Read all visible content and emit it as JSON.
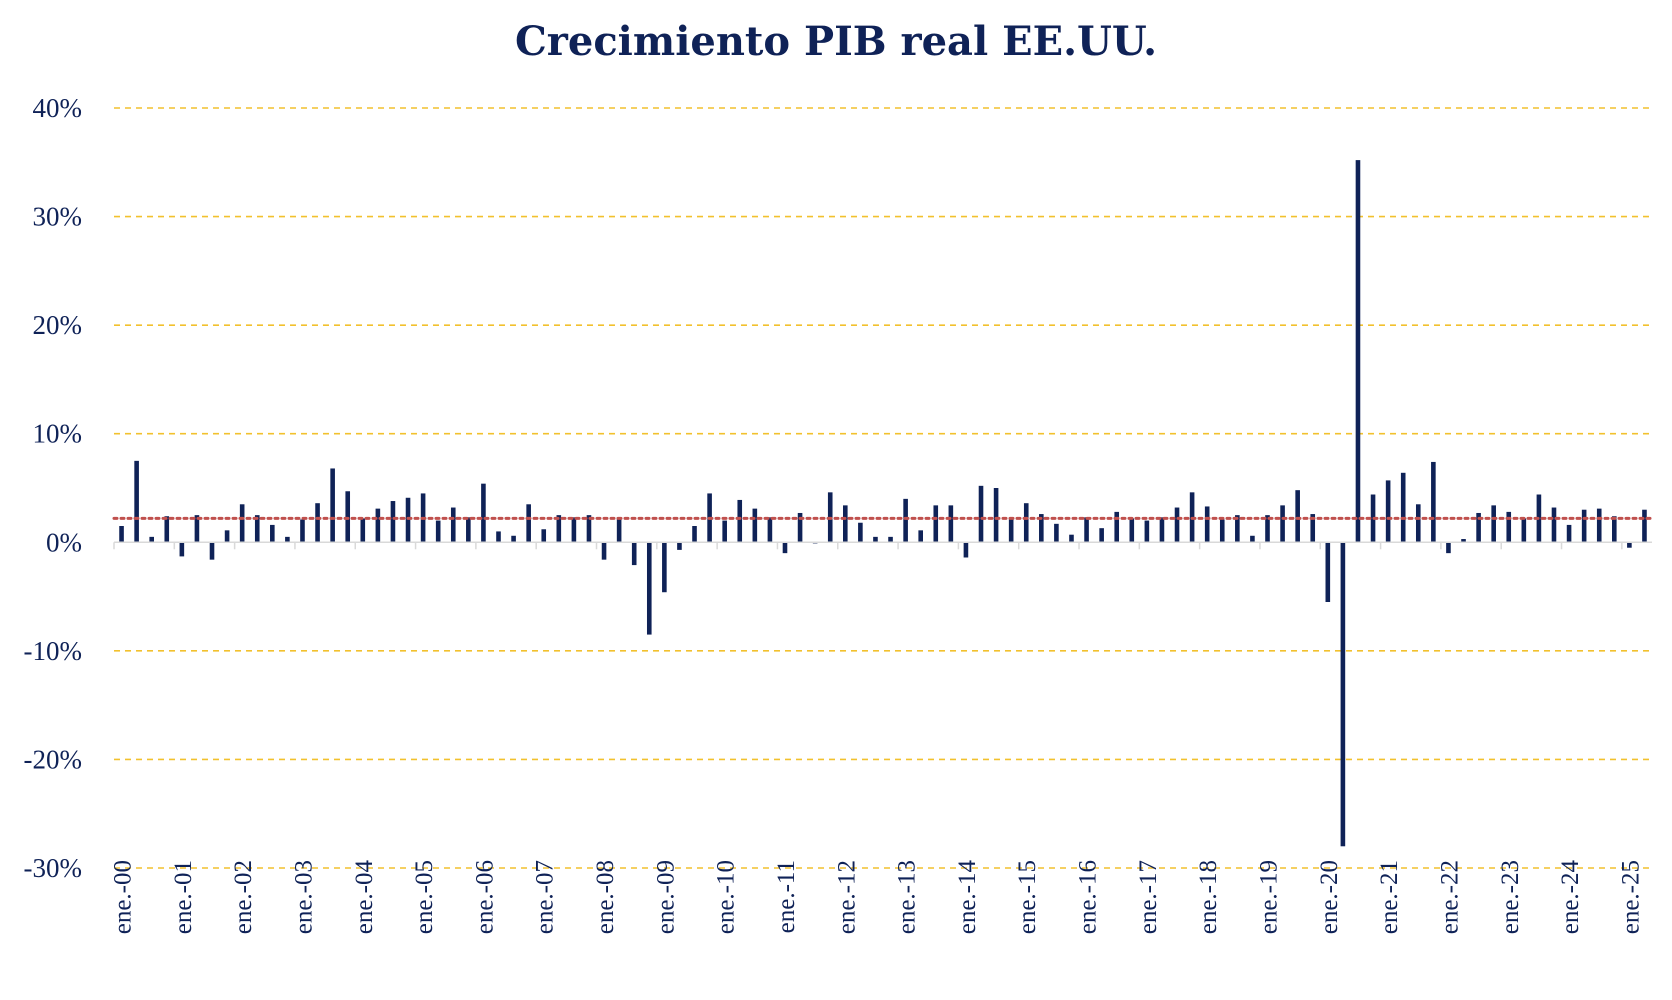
{
  "chart_data": {
    "type": "bar",
    "title": "Crecimiento PIB real EE.UU.",
    "xlabel": "",
    "ylabel": "",
    "ylim": [
      -30,
      40
    ],
    "yticks": [
      "40%",
      "30%",
      "20%",
      "10%",
      "0%",
      "-10%",
      "-20%",
      "-30%"
    ],
    "x_tick_labels": [
      "ene.-00",
      "ene.-01",
      "ene.-02",
      "ene.-03",
      "ene.-04",
      "ene.-05",
      "ene.-06",
      "ene.-07",
      "ene.-08",
      "ene.-09",
      "ene.-10",
      "ene.-11",
      "ene.-12",
      "ene.-13",
      "ene.-14",
      "ene.-15",
      "ene.-16",
      "ene.-17",
      "ene.-18",
      "ene.-19",
      "ene.-20",
      "ene.-21",
      "ene.-22",
      "ene.-23",
      "ene.-24",
      "ene.-25"
    ],
    "grid": "horizontal dashed",
    "series": [
      {
        "values": [
          1.5,
          7.5,
          0.5,
          2.4,
          -1.3,
          2.5,
          -1.6,
          1.1,
          3.5,
          2.5,
          1.6,
          0.5,
          2.1,
          3.6,
          6.8,
          4.7,
          2.2,
          3.1,
          3.8,
          4.1,
          4.5,
          2.0,
          3.2,
          2.3,
          5.4,
          1.0,
          0.6,
          3.5,
          1.2,
          2.5,
          2.3,
          2.5,
          -1.6,
          2.3,
          -2.1,
          -8.5,
          -4.6,
          -0.7,
          1.5,
          4.5,
          2.0,
          3.9,
          3.1,
          2.3,
          -1.0,
          2.7,
          -0.1,
          4.6,
          3.4,
          1.8,
          0.5,
          0.5,
          4.0,
          1.1,
          3.4,
          3.4,
          -1.4,
          5.2,
          5.0,
          2.1,
          3.6,
          2.6,
          1.7,
          0.7,
          2.3,
          1.3,
          2.8,
          2.2,
          2.0,
          2.3,
          3.2,
          4.6,
          3.3,
          2.1,
          2.5,
          0.6,
          2.5,
          3.4,
          4.8,
          2.6,
          -5.5,
          -28.0,
          35.2,
          4.4,
          5.7,
          6.4,
          3.5,
          7.4,
          -1.0,
          0.3,
          2.7,
          3.4,
          2.8,
          2.2,
          4.4,
          3.2,
          1.6,
          3.0,
          3.1,
          2.4,
          -0.5,
          3.0
        ]
      },
      {
        "name": "",
        "type": "line",
        "style": "dotted",
        "values": [
          2.2
        ]
      }
    ],
    "colors": {
      "bars": "#0f2257",
      "average_line": "#c0504d",
      "grid": "#f2c12e",
      "text": "#0f2257"
    }
  }
}
